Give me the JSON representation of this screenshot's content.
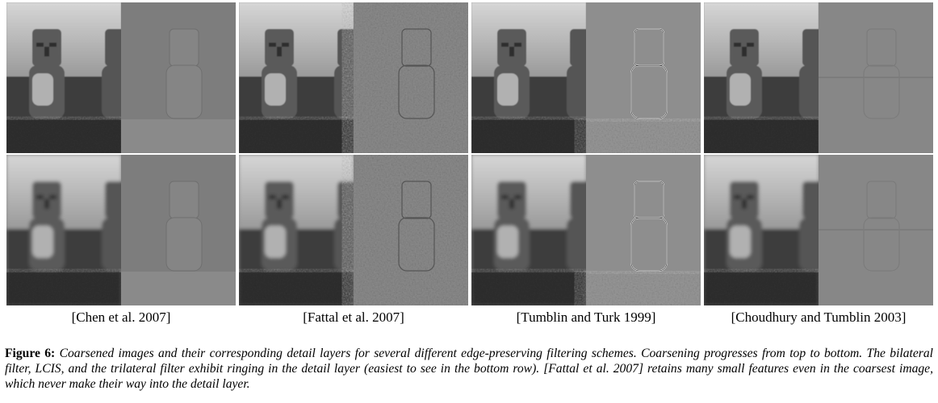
{
  "panels": {
    "columns": [
      {
        "label": "[Chen et al. 2007]",
        "right_style": "smooth"
      },
      {
        "label": "[Fattal et al. 2007]",
        "right_style": "noisy"
      },
      {
        "label": "[Tumblin and Turk 1999]",
        "right_style": "edges"
      },
      {
        "label": "[Choudhury and Tumblin 2003]",
        "right_style": "faint"
      }
    ],
    "rows": [
      "top",
      "bottom"
    ]
  },
  "caption": {
    "figure_label": "Figure 6:",
    "text": "Coarsened images and their corresponding detail layers for several different edge-preserving filtering schemes. Coarsening progresses from top to bottom. The bilateral filter, LCIS, and the trilateral filter exhibit ringing in the detail layer (easiest to see in the bottom row). [Fattal et al. 2007] retains many small features even in the coarsest image, which never make their way into the detail layer."
  }
}
